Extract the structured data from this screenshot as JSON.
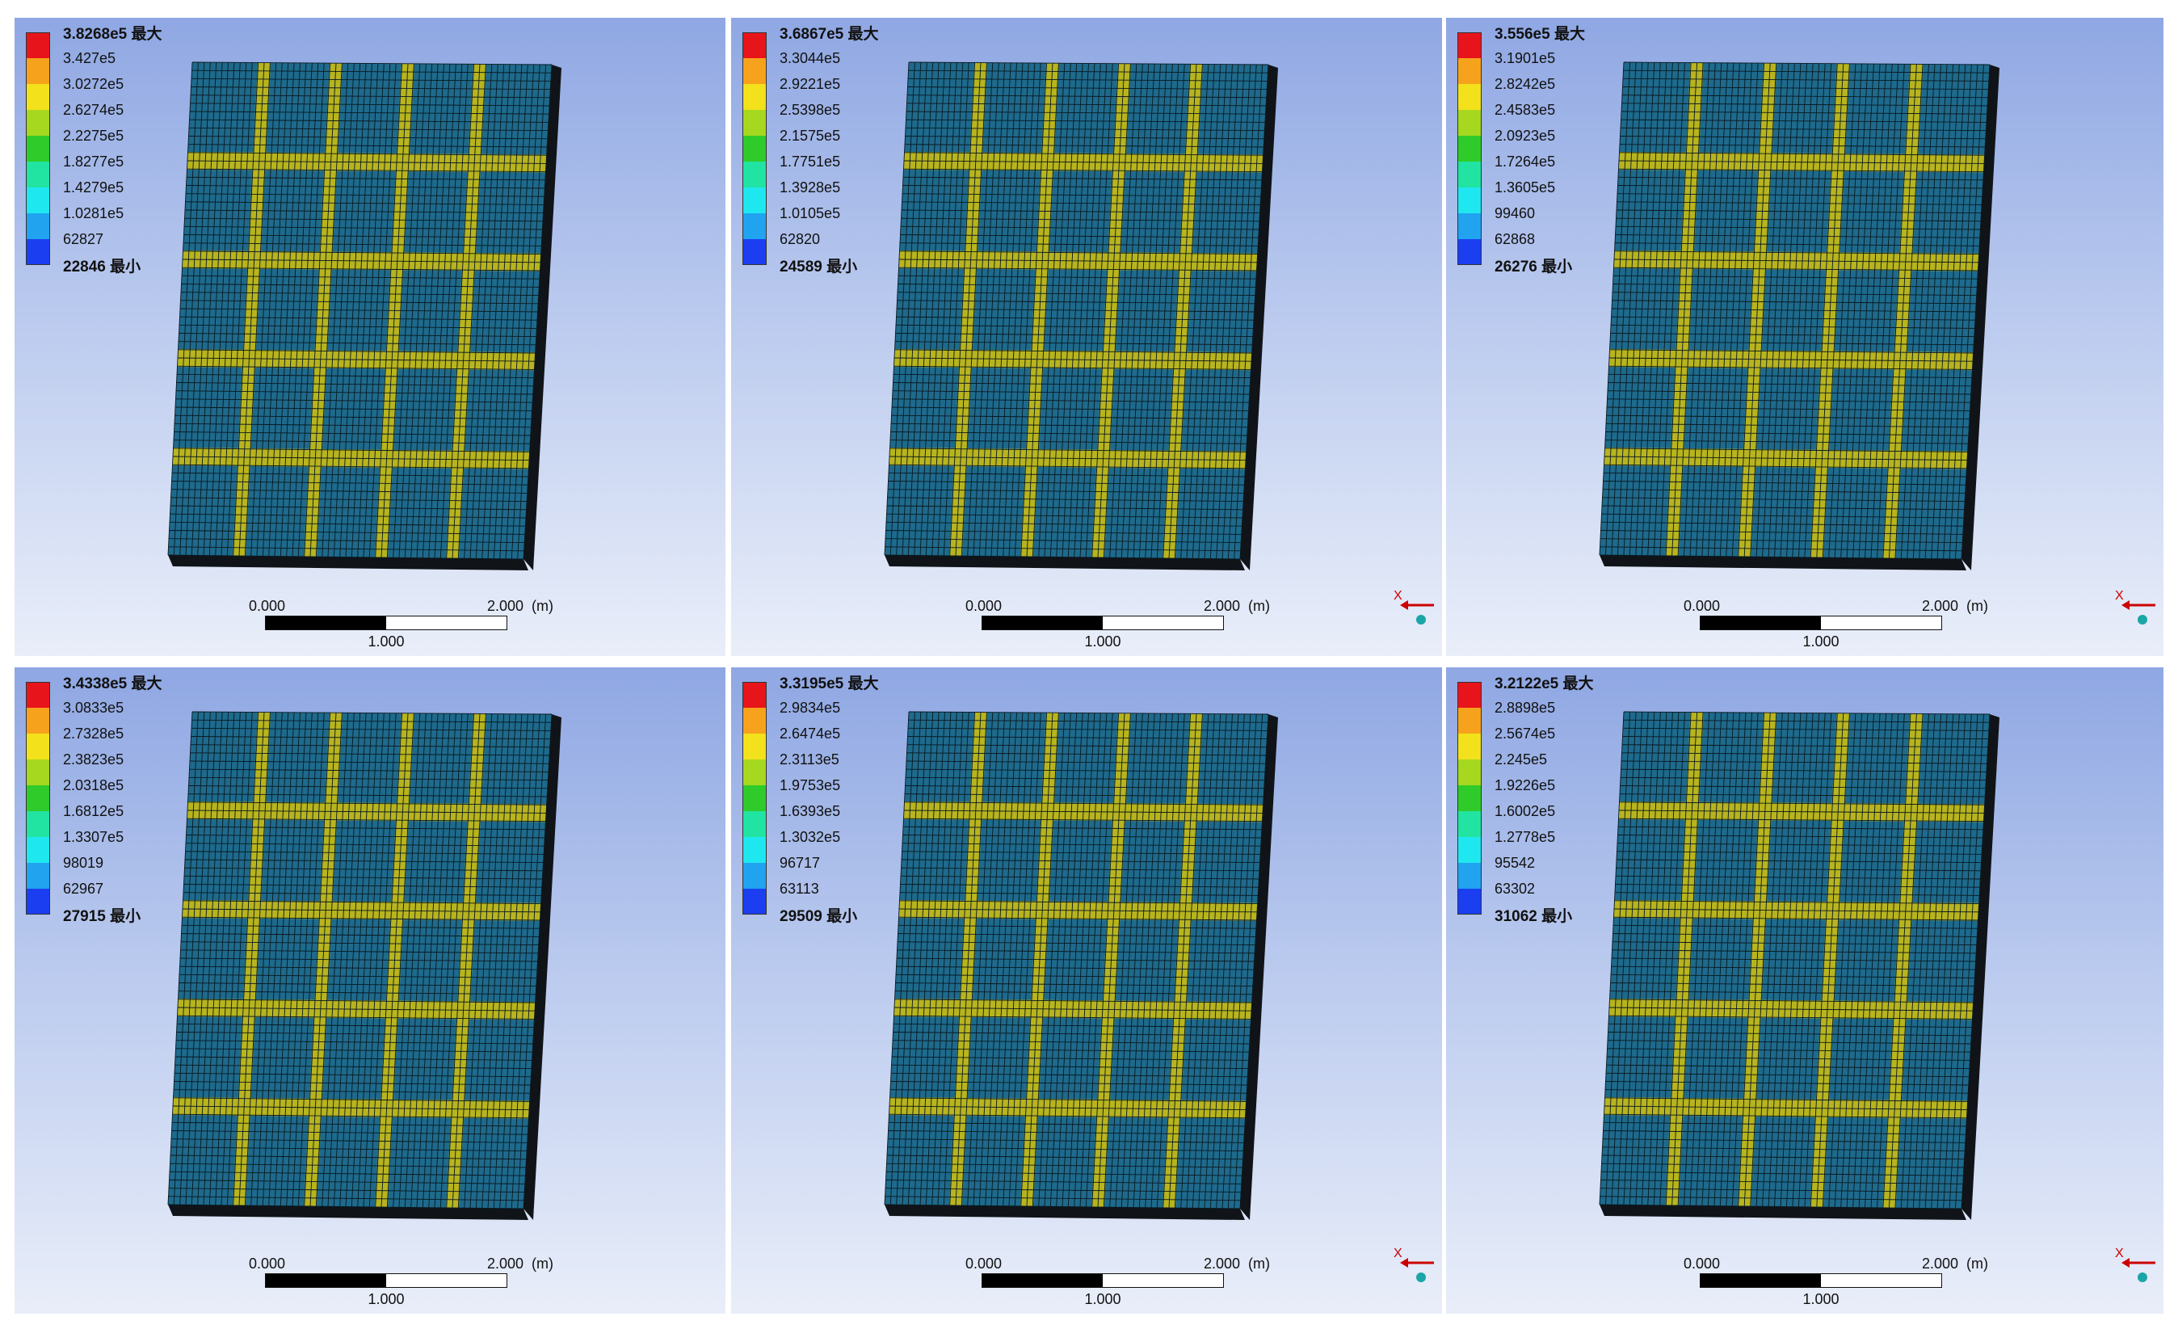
{
  "units_label": "(m)",
  "scale": {
    "left": "0.000",
    "right": "2.000",
    "mid": "1.000"
  },
  "axis_label": "X",
  "colors": {
    "bands": [
      "#e8141b",
      "#f7a21c",
      "#f2e11b",
      "#a6d81f",
      "#2fcb2a",
      "#21e3a2",
      "#1fe7ef",
      "#21a3f0",
      "#1b3ef1"
    ],
    "mesh_fill": "#1e6a8c",
    "mesh_line": "#0a1820",
    "weld_fill": "#b8b41e",
    "side_fill": "#101418"
  },
  "panels": [
    {
      "legend": [
        "3.8268e5 最大",
        "3.427e5",
        "3.0272e5",
        "2.6274e5",
        "2.2275e5",
        "1.8277e5",
        "1.4279e5",
        "1.0281e5",
        "62827",
        "22846 最小"
      ],
      "show_axis": false
    },
    {
      "legend": [
        "3.6867e5 最大",
        "3.3044e5",
        "2.9221e5",
        "2.5398e5",
        "2.1575e5",
        "1.7751e5",
        "1.3928e5",
        "1.0105e5",
        "62820",
        "24589 最小"
      ],
      "show_axis": true
    },
    {
      "legend": [
        "3.556e5 最大",
        "3.1901e5",
        "2.8242e5",
        "2.4583e5",
        "2.0923e5",
        "1.7264e5",
        "1.3605e5",
        "99460",
        "62868",
        "26276 最小"
      ],
      "show_axis": true
    },
    {
      "legend": [
        "3.4338e5 最大",
        "3.0833e5",
        "2.7328e5",
        "2.3823e5",
        "2.0318e5",
        "1.6812e5",
        "1.3307e5",
        "98019",
        "62967",
        "27915 最小"
      ],
      "show_axis": false
    },
    {
      "legend": [
        "3.3195e5 最大",
        "2.9834e5",
        "2.6474e5",
        "2.3113e5",
        "1.9753e5",
        "1.6393e5",
        "1.3032e5",
        "96717",
        "63113",
        "29509 最小"
      ],
      "show_axis": true
    },
    {
      "legend": [
        "3.2122e5 最大",
        "2.8898e5",
        "2.5674e5",
        "2.245e5",
        "1.9226e5",
        "1.6002e5",
        "1.2778e5",
        "95542",
        "63302",
        "31062 最小"
      ],
      "show_axis": true
    }
  ]
}
